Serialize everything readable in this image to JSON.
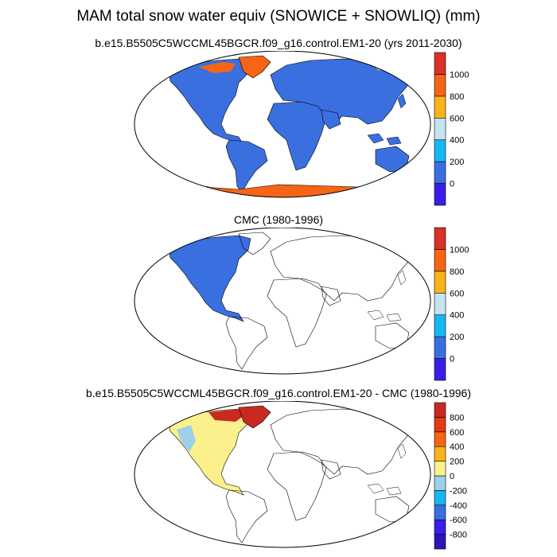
{
  "figure": {
    "title": "MAM total snow water equiv (SNOWICE + SNOWLIQ) (mm)"
  },
  "panels": [
    {
      "title": "b.e15.B5505C5WCCML45BGCR.f09_g16.control.EM1-20 (yrs 2011-2030)",
      "colorbar": {
        "colors": [
          "#3a1ee8",
          "#3a6fe0",
          "#17b7f2",
          "#c6e3f2",
          "#f9b41a",
          "#f56515",
          "#d93027"
        ],
        "labels": [
          "0",
          "200",
          "400",
          "600",
          "800",
          "1000"
        ]
      }
    },
    {
      "title": "CMC (1980-1996)",
      "colorbar": {
        "colors": [
          "#3a1ee8",
          "#3a6fe0",
          "#17b7f2",
          "#c6e3f2",
          "#f9b41a",
          "#f56515",
          "#d93027"
        ],
        "labels": [
          "0",
          "200",
          "400",
          "600",
          "800",
          "1000"
        ]
      }
    },
    {
      "title": "b.e15.B5505C5WCCML45BGCR.f09_g16.control.EM1-20 - CMC (1980-1996)",
      "colorbar": {
        "colors": [
          "#2a16b8",
          "#3a1ee8",
          "#3a6fe0",
          "#17b7f2",
          "#9fd0ea",
          "#fbf18c",
          "#f9b41a",
          "#f56515",
          "#e23b10",
          "#c82a22"
        ],
        "labels": [
          "-800",
          "-600",
          "-400",
          "-200",
          "0",
          "200",
          "400",
          "600",
          "800"
        ]
      }
    }
  ]
}
